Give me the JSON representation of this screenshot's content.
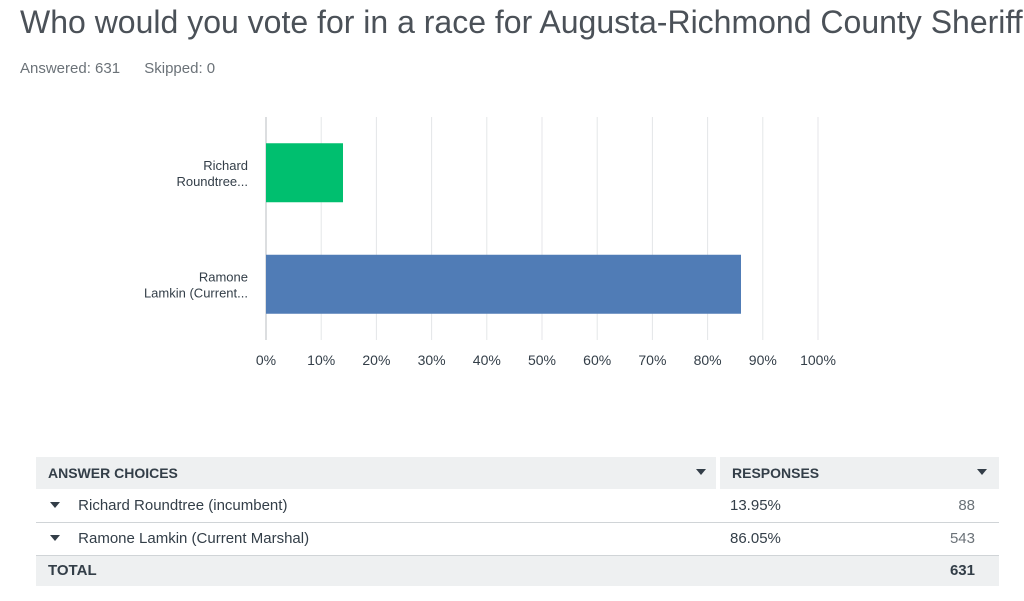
{
  "question": {
    "title": "Who would you vote for in a race for Augusta-Richmond County Sheriff?",
    "answered": "Answered: 631",
    "skipped": "Skipped: 0"
  },
  "chart_data": {
    "type": "bar",
    "orientation": "horizontal",
    "categories": [
      "Richard Roundtree...",
      "Ramone Lamkin (Current..."
    ],
    "values": [
      13.95,
      86.05
    ],
    "colors": [
      "#00bf6f",
      "#507cb6"
    ],
    "xlim": [
      0,
      100
    ],
    "ticks": [
      "0%",
      "10%",
      "20%",
      "30%",
      "40%",
      "50%",
      "60%",
      "70%",
      "80%",
      "90%",
      "100%"
    ],
    "grid": true
  },
  "table": {
    "col_choices": "ANSWER CHOICES",
    "col_responses": "RESPONSES",
    "rows": [
      {
        "choice": "Richard Roundtree (incumbent)",
        "percent": "13.95%",
        "count": "88"
      },
      {
        "choice": "Ramone Lamkin (Current Marshal)",
        "percent": "86.05%",
        "count": "543"
      }
    ],
    "total_label": "TOTAL",
    "total_count": "631"
  }
}
